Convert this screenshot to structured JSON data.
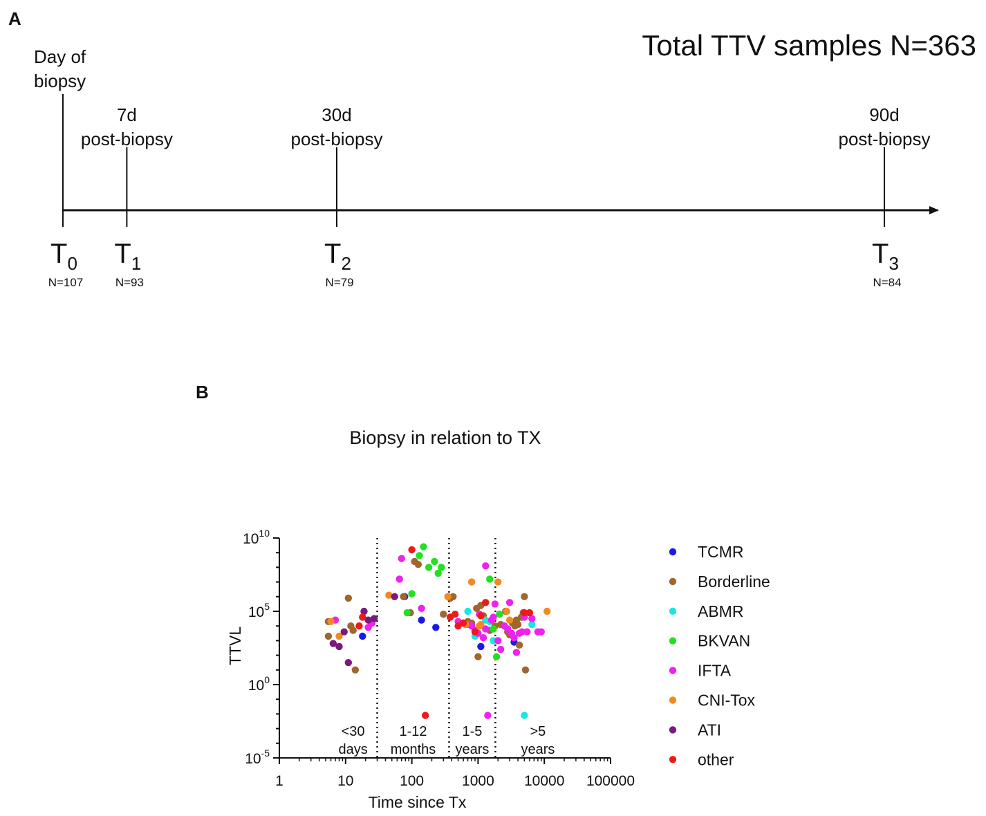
{
  "panel_a": {
    "letter": "A",
    "headline": "Total TTV samples N=363",
    "timepoints": [
      {
        "label_main": "T",
        "label_sub": "0",
        "count": "N=107",
        "desc": [
          "Day of",
          "biopsy"
        ],
        "day": 0
      },
      {
        "label_main": "T",
        "label_sub": "1",
        "count": "N=93",
        "desc": [
          "7d",
          "post-biopsy"
        ],
        "day": 7
      },
      {
        "label_main": "T",
        "label_sub": "2",
        "count": "N=79",
        "desc": [
          "30d",
          "post-biopsy"
        ],
        "day": 30
      },
      {
        "label_main": "T",
        "label_sub": "3",
        "count": "N=84",
        "desc": [
          "90d",
          "post-biopsy"
        ],
        "day": 90
      }
    ]
  },
  "panel_b": {
    "letter": "B"
  },
  "chart_data": {
    "type": "scatter",
    "title": "Biopsy in relation to TX",
    "xlabel": "Time since Tx",
    "ylabel": "TTVL",
    "xscale": "log",
    "yscale": "log",
    "xlim": [
      1,
      100000
    ],
    "ylim": [
      -5,
      10
    ],
    "x_ticks": [
      "1",
      "10",
      "100",
      "1000",
      "10000",
      "100000"
    ],
    "y_ticks": [
      {
        "base": "10",
        "exp": "10",
        "value": 10
      },
      {
        "base": "10",
        "exp": "5",
        "value": 5
      },
      {
        "base": "10",
        "exp": "0",
        "value": 0
      },
      {
        "base": "10",
        "exp": "-5",
        "value": -5
      }
    ],
    "dividers_days": [
      30,
      365,
      1825
    ],
    "period_labels": [
      {
        "line1": "<30",
        "line2": "days"
      },
      {
        "line1": "1-12",
        "line2": "months"
      },
      {
        "line1": "1-5",
        "line2": "years"
      },
      {
        "line1": ">5",
        "line2": "years"
      }
    ],
    "legend_position": "right",
    "series": [
      {
        "name": "TCMR",
        "color": "#1a1ae6",
        "points": [
          [
            18,
            3.3
          ],
          [
            78,
            6.0
          ],
          [
            140,
            4.4
          ],
          [
            230,
            3.9
          ],
          [
            1100,
            2.6
          ],
          [
            3500,
            2.9
          ]
        ]
      },
      {
        "name": "Borderline",
        "color": "#a0662d",
        "points": [
          [
            5.5,
            4.3
          ],
          [
            5.5,
            3.3
          ],
          [
            11,
            5.9
          ],
          [
            12,
            4.0
          ],
          [
            13,
            3.7
          ],
          [
            14,
            1.0
          ],
          [
            75,
            6.0
          ],
          [
            95,
            4.9
          ],
          [
            110,
            8.4
          ],
          [
            125,
            8.2
          ],
          [
            300,
            4.8
          ],
          [
            380,
            5.9
          ],
          [
            420,
            6.0
          ],
          [
            700,
            4.3
          ],
          [
            800,
            4.2
          ],
          [
            950,
            5.2
          ],
          [
            1000,
            1.9
          ],
          [
            1100,
            5.4
          ],
          [
            1200,
            4.7
          ],
          [
            1500,
            3.7
          ],
          [
            1800,
            4.0
          ],
          [
            2200,
            4.1
          ],
          [
            2600,
            5.0
          ],
          [
            2800,
            3.6
          ],
          [
            3000,
            3.4
          ],
          [
            3300,
            4.2
          ],
          [
            3600,
            4.0
          ],
          [
            3800,
            4.4
          ],
          [
            4000,
            4.1
          ],
          [
            4200,
            2.7
          ],
          [
            4500,
            4.6
          ],
          [
            4800,
            4.9
          ],
          [
            5000,
            6.0
          ],
          [
            5200,
            1.0
          ]
        ]
      },
      {
        "name": "ABMR",
        "color": "#1ae6e6",
        "points": [
          [
            700,
            5.0
          ],
          [
            900,
            3.3
          ],
          [
            1300,
            4.4
          ],
          [
            1500,
            4.3
          ],
          [
            1700,
            3.0
          ],
          [
            5000,
            -2.1
          ],
          [
            6500,
            4.1
          ]
        ]
      },
      {
        "name": "BKVAN",
        "color": "#22e022",
        "points": [
          [
            85,
            4.9
          ],
          [
            100,
            6.2
          ],
          [
            130,
            8.8
          ],
          [
            150,
            9.4
          ],
          [
            180,
            8.0
          ],
          [
            220,
            8.4
          ],
          [
            250,
            7.6
          ],
          [
            280,
            8.0
          ],
          [
            1500,
            7.2
          ],
          [
            1700,
            3.8
          ],
          [
            1900,
            1.9
          ],
          [
            2100,
            4.8
          ]
        ]
      },
      {
        "name": "IFTA",
        "color": "#ee22ee",
        "points": [
          [
            7,
            4.4
          ],
          [
            22,
            3.9
          ],
          [
            25,
            4.2
          ],
          [
            65,
            7.2
          ],
          [
            70,
            8.6
          ],
          [
            140,
            5.2
          ],
          [
            500,
            4.3
          ],
          [
            600,
            4.2
          ],
          [
            700,
            4.1
          ],
          [
            800,
            4.0
          ],
          [
            900,
            3.7
          ],
          [
            1000,
            3.5
          ],
          [
            1050,
            4.8
          ],
          [
            1200,
            3.2
          ],
          [
            1300,
            3.8
          ],
          [
            1300,
            8.1
          ],
          [
            1400,
            -2.1
          ],
          [
            1600,
            4.4
          ],
          [
            1700,
            4.6
          ],
          [
            1800,
            5.5
          ],
          [
            2000,
            3.0
          ],
          [
            2200,
            2.4
          ],
          [
            2500,
            4.0
          ],
          [
            2800,
            3.8
          ],
          [
            3000,
            5.6
          ],
          [
            3200,
            3.5
          ],
          [
            3500,
            3.2
          ],
          [
            3800,
            2.2
          ],
          [
            4200,
            3.5
          ],
          [
            4600,
            3.6
          ],
          [
            5000,
            4.6
          ],
          [
            5500,
            3.6
          ],
          [
            6500,
            4.5
          ],
          [
            8000,
            3.6
          ],
          [
            9000,
            3.6
          ]
        ]
      },
      {
        "name": "CNI-Tox",
        "color": "#f28a20",
        "points": [
          [
            6,
            4.3
          ],
          [
            8,
            3.3
          ],
          [
            45,
            6.1
          ],
          [
            350,
            6.0
          ],
          [
            650,
            4.1
          ],
          [
            800,
            7.0
          ],
          [
            1050,
            4.0
          ],
          [
            1100,
            4.1
          ],
          [
            2000,
            7.0
          ],
          [
            2700,
            5.0
          ],
          [
            3000,
            4.4
          ],
          [
            11000,
            5.0
          ]
        ]
      },
      {
        "name": "ATI",
        "color": "#7a1a7a",
        "points": [
          [
            6.5,
            2.8
          ],
          [
            8,
            2.6
          ],
          [
            9.5,
            3.6
          ],
          [
            11,
            1.5
          ],
          [
            19,
            5.0
          ],
          [
            22,
            4.4
          ],
          [
            27,
            4.5
          ],
          [
            55,
            6.0
          ]
        ]
      },
      {
        "name": "other",
        "color": "#ee1a1a",
        "points": [
          [
            16,
            4.0
          ],
          [
            18,
            4.6
          ],
          [
            100,
            9.2
          ],
          [
            160,
            -2.1
          ],
          [
            380,
            4.6
          ],
          [
            450,
            4.8
          ],
          [
            500,
            4.0
          ],
          [
            600,
            4.2
          ],
          [
            900,
            3.6
          ],
          [
            1100,
            4.7
          ],
          [
            1300,
            5.6
          ],
          [
            5000,
            4.9
          ],
          [
            6000,
            4.9
          ]
        ]
      }
    ]
  }
}
